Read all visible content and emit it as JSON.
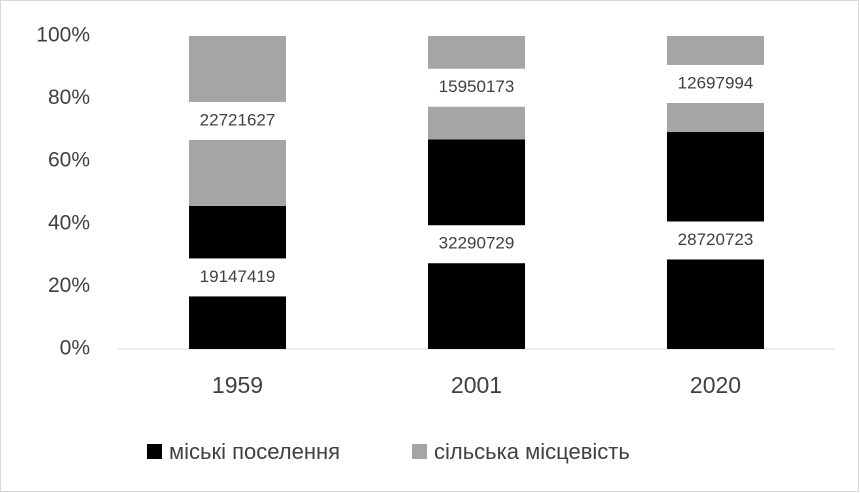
{
  "chart_data": {
    "type": "bar",
    "stacked_percent": true,
    "categories": [
      "1959",
      "2001",
      "2020"
    ],
    "series": [
      {
        "name": "міські поселення",
        "color": "#000000",
        "values": [
          19147419,
          32290729,
          28720723
        ]
      },
      {
        "name": "сільська місцевість",
        "color": "#a5a5a5",
        "values": [
          22721627,
          15950173,
          12697994
        ]
      }
    ],
    "ylim": [
      0,
      100
    ],
    "yticks": [
      {
        "value": 0,
        "label": "0%"
      },
      {
        "value": 20,
        "label": "20%"
      },
      {
        "value": 40,
        "label": "40%"
      },
      {
        "value": 60,
        "label": "60%"
      },
      {
        "value": 80,
        "label": "80%"
      },
      {
        "value": 100,
        "label": "100%"
      }
    ],
    "grid": false,
    "legend": "bottom"
  }
}
